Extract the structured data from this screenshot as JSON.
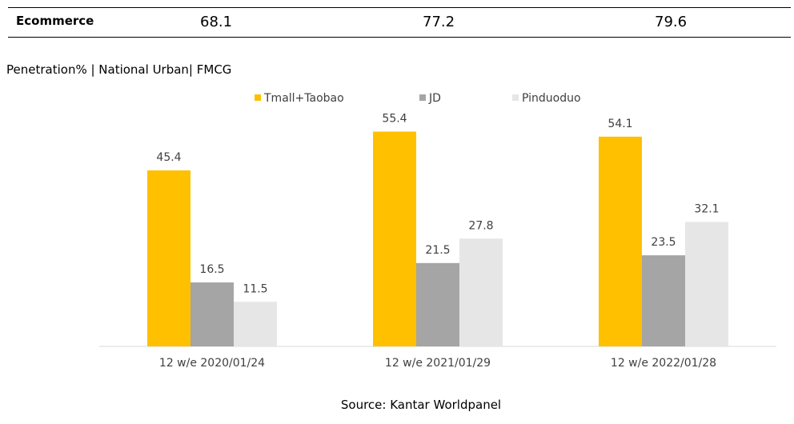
{
  "table": {
    "label": "Ecommerce",
    "values": [
      "68.1",
      "77.2",
      "79.6"
    ]
  },
  "subtitle": "Penetration% | National Urban| FMCG",
  "source": "Source: Kantar Worldpanel",
  "chart_data": {
    "type": "bar",
    "categories": [
      "12 w/e 2020/01/24",
      "12 w/e 2021/01/29",
      "12 w/e 2022/01/28"
    ],
    "series": [
      {
        "name": "Tmall+Taobao",
        "color": "#FFC000",
        "values": [
          45.4,
          55.4,
          54.1
        ]
      },
      {
        "name": "JD",
        "color": "#A5A5A5",
        "values": [
          16.5,
          21.5,
          23.5
        ]
      },
      {
        "name": "Pinduoduo",
        "color": "#E7E6E6",
        "values": [
          11.5,
          27.8,
          32.1
        ]
      }
    ],
    "ylim": [
      0,
      60
    ],
    "grid": false,
    "legend": "top"
  }
}
